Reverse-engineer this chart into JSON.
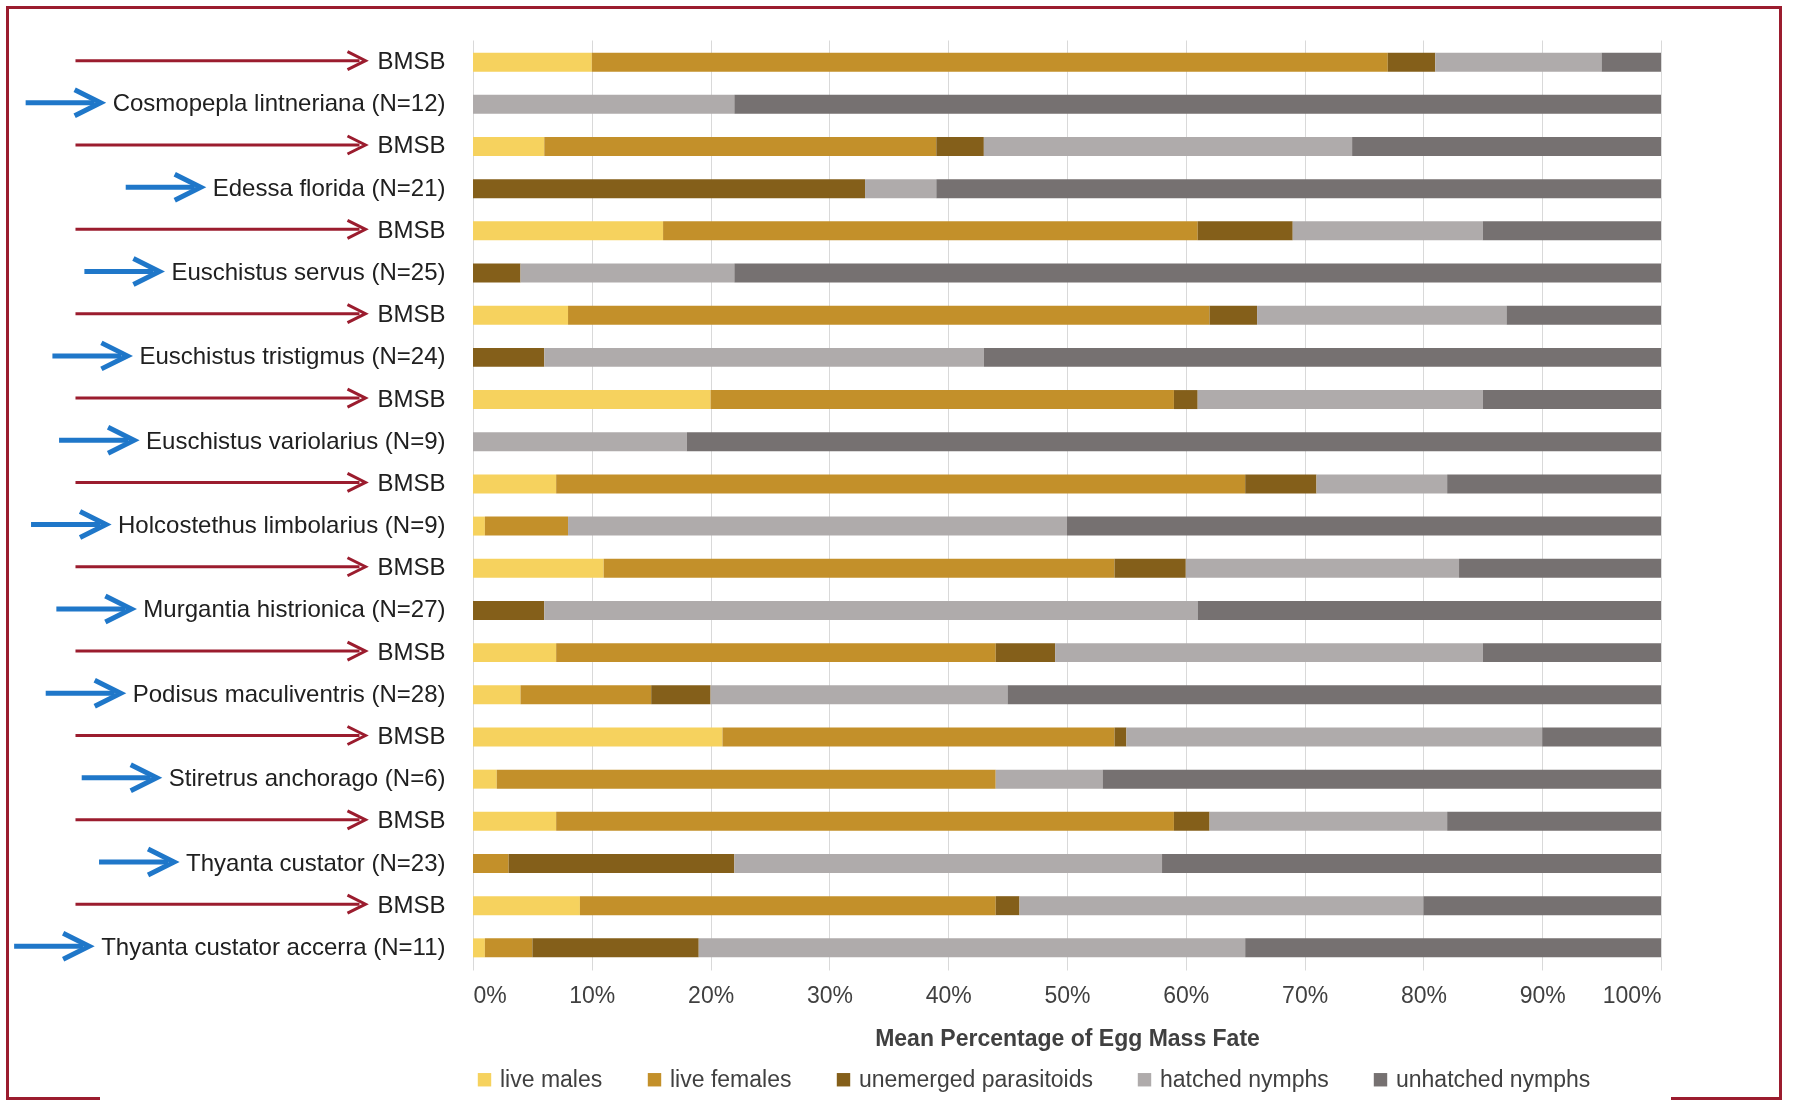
{
  "chart_data": {
    "type": "bar",
    "orientation": "horizontal",
    "stacked": true,
    "categories": [
      "BMSB",
      "Cosmopepla lintneriana (N=12)",
      "BMSB",
      "Edessa florida (N=21)",
      "BMSB",
      "Euschistus servus (N=25)",
      "BMSB",
      "Euschistus tristigmus (N=24)",
      "BMSB",
      "Euschistus variolarius (N=9)",
      "BMSB",
      "Holcostethus limbolarius (N=9)",
      "BMSB",
      "Murgantia histrionica (N=27)",
      "BMSB",
      "Podisus maculiventris (N=28)",
      "BMSB",
      "Stiretrus anchorago (N=6)",
      "BMSB",
      "Thyanta custator (N=23)",
      "BMSB",
      "Thyanta custator accerra (N=11)"
    ],
    "series": [
      {
        "name": "live males",
        "color": "#f6d25e",
        "values": [
          10,
          0,
          6,
          0,
          16,
          0,
          8,
          0,
          20,
          0,
          7,
          1,
          11,
          0,
          7,
          4,
          21,
          2,
          7,
          0,
          9,
          1
        ]
      },
      {
        "name": "live females",
        "color": "#c3902a",
        "values": [
          67,
          0,
          33,
          0,
          45,
          0,
          54,
          0,
          39,
          0,
          58,
          7,
          43,
          0,
          37,
          11,
          33,
          42,
          52,
          3,
          35,
          4
        ]
      },
      {
        "name": "unemerged parasitoids",
        "color": "#845f1a",
        "values": [
          4,
          0,
          4,
          33,
          8,
          4,
          4,
          6,
          2,
          0,
          6,
          0,
          6,
          6,
          5,
          5,
          1,
          0,
          3,
          19,
          2,
          14
        ]
      },
      {
        "name": "hatched nymphs",
        "color": "#afabab",
        "values": [
          14,
          22,
          31,
          6,
          16,
          18,
          21,
          37,
          24,
          18,
          11,
          42,
          23,
          55,
          36,
          25,
          35,
          9,
          20,
          36,
          34,
          46
        ]
      },
      {
        "name": "unhatched nymphs",
        "color": "#767171",
        "values": [
          5,
          78,
          26,
          61,
          15,
          78,
          13,
          57,
          15,
          82,
          18,
          50,
          17,
          39,
          15,
          55,
          10,
          47,
          18,
          42,
          20,
          35
        ]
      }
    ],
    "xlabel": "Mean Percentage of Egg Mass Fate",
    "xlim": [
      0,
      100
    ],
    "xticks": [
      {
        "value": 0,
        "label": "0%"
      },
      {
        "value": 10,
        "label": "10%"
      },
      {
        "value": 20,
        "label": "20%"
      },
      {
        "value": 30,
        "label": "30%"
      },
      {
        "value": 40,
        "label": "40%"
      },
      {
        "value": 50,
        "label": "50%"
      },
      {
        "value": 60,
        "label": "60%"
      },
      {
        "value": 70,
        "label": "70%"
      },
      {
        "value": 80,
        "label": "80%"
      },
      {
        "value": 90,
        "label": "90%"
      },
      {
        "value": 100,
        "label": "100%"
      }
    ],
    "grid": "x",
    "legend": "bottom"
  }
}
